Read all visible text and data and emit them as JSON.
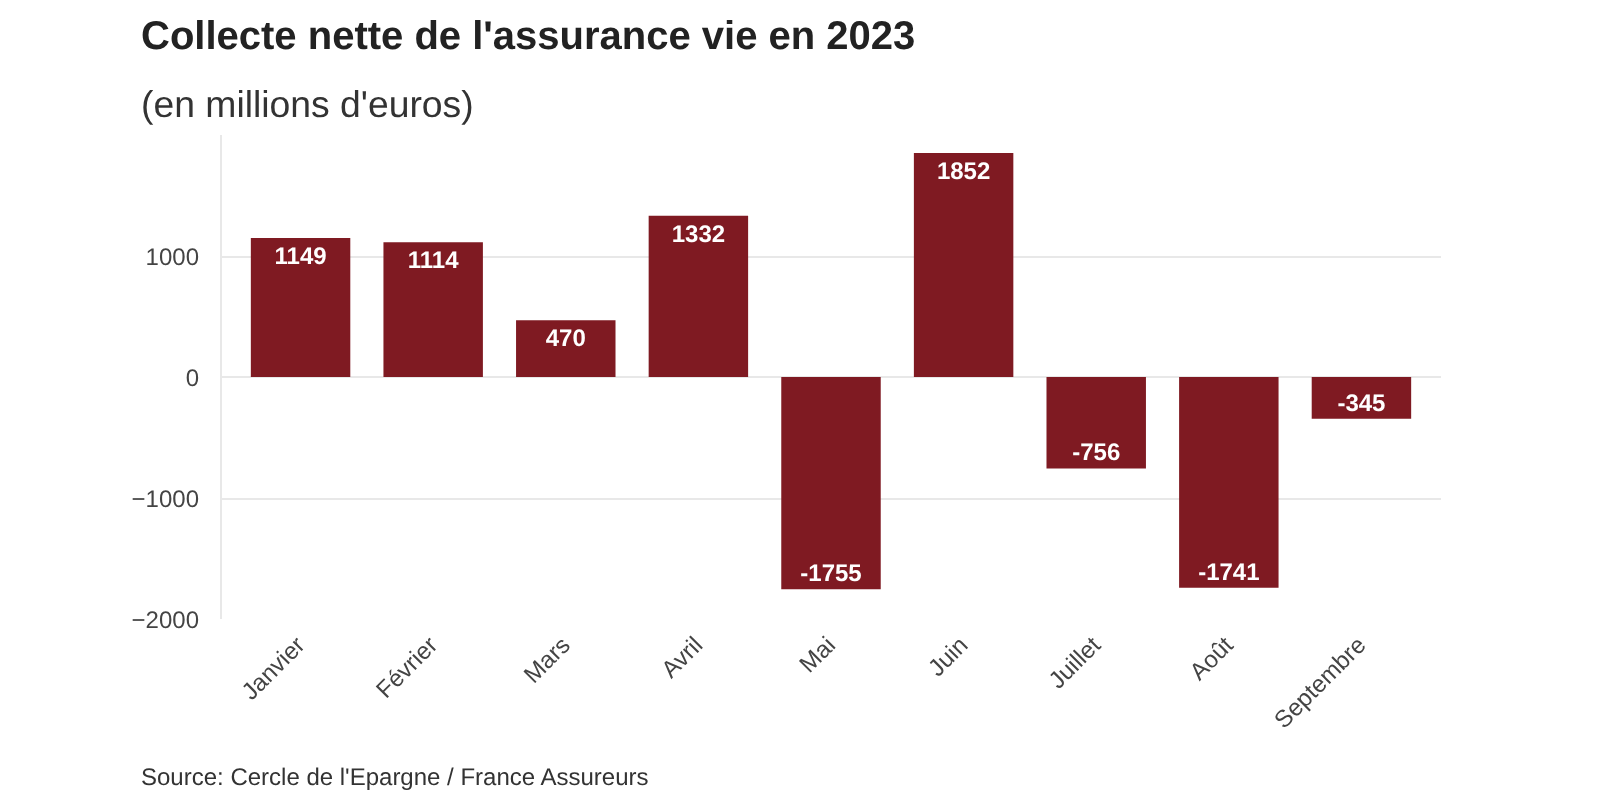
{
  "chart_data": {
    "type": "bar",
    "title": "Collecte nette de l'assurance vie en 2023",
    "subtitle": "(en millions d'euros)",
    "categories": [
      "Janvier",
      "Février",
      "Mars",
      "Avril",
      "Mai",
      "Juin",
      "Juillet",
      "Août",
      "Septembre"
    ],
    "values": [
      1149,
      1114,
      470,
      1332,
      -1755,
      1852,
      -756,
      -1741,
      -345
    ],
    "color": "#7f1a22",
    "ylim": [
      -2000,
      2000
    ],
    "yticks": [
      -2000,
      -1000,
      0,
      1000
    ],
    "grid": "y",
    "data_labels": true,
    "annotations": [
      "Source: Cercle de l'Epargne / France Assureurs"
    ]
  }
}
